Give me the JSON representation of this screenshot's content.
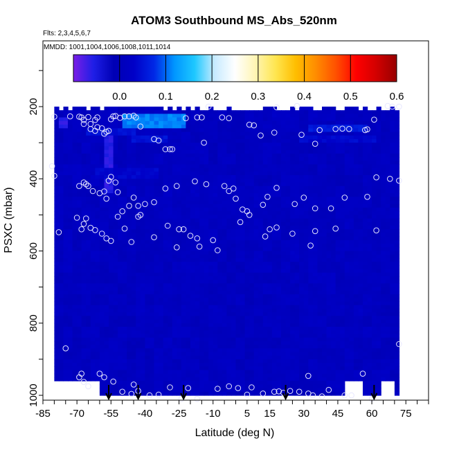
{
  "chart_data": {
    "type": "heatmap",
    "title": "ATOM3 Southbound MS_Abs_520nm",
    "flights_note": "Flts: 2,3,4,5,6,7",
    "dates_note": "MMDD: 1001,1004,1006,1008,1011,1014",
    "xlabel": "Latitude (deg N)",
    "ylabel": "PSXC (mbar)",
    "xlim": [
      -85,
      85
    ],
    "ylim": [
      1010,
      40
    ],
    "x_ticks": [
      -85,
      -70,
      -55,
      -40,
      -25,
      -10,
      5,
      15,
      30,
      45,
      60,
      75
    ],
    "y_ticks": [
      200,
      400,
      600,
      800,
      1000
    ],
    "colorbar": {
      "range": [
        -0.1,
        0.6
      ],
      "ticks": [
        0.0,
        0.1,
        0.2,
        0.3,
        0.4,
        0.5,
        0.6
      ],
      "tick_labels": [
        "0.0",
        "0.1",
        "0.2",
        "0.3",
        "0.4",
        "0.5",
        "0.6"
      ],
      "colors": [
        "#7a1ee6",
        "#1e1ee6",
        "#0000b4",
        "#0000c8",
        "#0028e6",
        "#0096ff",
        "#1ec8ff",
        "#c8ebff",
        "#ffffff",
        "#fff5b4",
        "#ffe650",
        "#ffbe00",
        "#ff8c00",
        "#ff5000",
        "#ff0000",
        "#d20000",
        "#960000"
      ]
    },
    "field_extent": {
      "lat": [
        -80,
        71
      ],
      "psxc": [
        200,
        1000
      ]
    },
    "field_gaps": [
      {
        "lat": [
          -80,
          -60
        ],
        "psxc": [
          960,
          1000
        ]
      },
      {
        "lat": [
          48,
          57
        ],
        "psxc": [
          960,
          1000
        ]
      },
      {
        "lat": [
          64,
          71
        ],
        "psxc": [
          960,
          1000
        ]
      }
    ],
    "enhancements": [
      {
        "lat": [
          -50,
          -22
        ],
        "psxc": [
          218,
          262
        ],
        "value": 0.11
      },
      {
        "lat": [
          -66,
          -45
        ],
        "psxc": [
          262,
          278
        ],
        "value": 0.05
      },
      {
        "lat": [
          -58,
          -55
        ],
        "psxc": [
          280,
          440
        ],
        "value": -0.06
      },
      {
        "lat": [
          -46,
          -30
        ],
        "psxc": [
          285,
          300
        ],
        "value": 0.05
      },
      {
        "lat": [
          33,
          57
        ],
        "psxc": [
          255,
          272
        ],
        "value": 0.06
      },
      {
        "lat": [
          28,
          62
        ],
        "psxc": [
          280,
          300
        ],
        "value": 0.04
      },
      {
        "lat": [
          -62,
          -35
        ],
        "psxc": [
          370,
          400
        ],
        "value": 0.035
      },
      {
        "lat": [
          -78,
          -74
        ],
        "psxc": [
          228,
          262
        ],
        "value": -0.06
      }
    ],
    "sample_points": [
      [
        -80,
        228
      ],
      [
        -73,
        227
      ],
      [
        -69,
        228
      ],
      [
        -68,
        230
      ],
      [
        -67,
        237
      ],
      [
        -67,
        248
      ],
      [
        -65,
        229
      ],
      [
        -64,
        248
      ],
      [
        -64,
        262
      ],
      [
        -62,
        267
      ],
      [
        -62,
        237
      ],
      [
        -61,
        230
      ],
      [
        -61,
        257
      ],
      [
        -59,
        260
      ],
      [
        -58,
        275
      ],
      [
        -57,
        270
      ],
      [
        -56,
        267
      ],
      [
        -55,
        235
      ],
      [
        -54,
        227
      ],
      [
        -53,
        226
      ],
      [
        -51,
        231
      ],
      [
        -49,
        227
      ],
      [
        -47,
        227
      ],
      [
        -45,
        225
      ],
      [
        -44,
        230
      ],
      [
        -42,
        255
      ],
      [
        -36,
        290
      ],
      [
        -34,
        294
      ],
      [
        -31,
        318
      ],
      [
        -29,
        318
      ],
      [
        -28,
        318
      ],
      [
        -22,
        232
      ],
      [
        -17,
        230
      ],
      [
        -15,
        230
      ],
      [
        -14,
        300
      ],
      [
        -6,
        230
      ],
      [
        -3,
        232
      ],
      [
        -12,
        200
      ],
      [
        6,
        250
      ],
      [
        8,
        252
      ],
      [
        11,
        280
      ],
      [
        17,
        272
      ],
      [
        18,
        202
      ],
      [
        27,
        198
      ],
      [
        29,
        278
      ],
      [
        35,
        303
      ],
      [
        37,
        265
      ],
      [
        44,
        262
      ],
      [
        47,
        261
      ],
      [
        50,
        262
      ],
      [
        57,
        265
      ],
      [
        58,
        263
      ],
      [
        61,
        236
      ],
      [
        67,
        198
      ],
      [
        69,
        200
      ],
      [
        72,
        200
      ],
      [
        -81,
        365
      ],
      [
        -80,
        392
      ],
      [
        -69,
        420
      ],
      [
        -67,
        410
      ],
      [
        -66,
        415
      ],
      [
        -65,
        420
      ],
      [
        -63,
        434
      ],
      [
        -60,
        440
      ],
      [
        -58,
        435
      ],
      [
        -57,
        455
      ],
      [
        -56,
        405
      ],
      [
        -55,
        395
      ],
      [
        -53,
        410
      ],
      [
        -52,
        437
      ],
      [
        -50,
        490
      ],
      [
        -47,
        475
      ],
      [
        -45,
        452
      ],
      [
        -43,
        475
      ],
      [
        -42,
        500
      ],
      [
        -40,
        470
      ],
      [
        -36,
        465
      ],
      [
        -31,
        427
      ],
      [
        -26,
        420
      ],
      [
        -18,
        407
      ],
      [
        -13,
        415
      ],
      [
        -5,
        420
      ],
      [
        -3,
        434
      ],
      [
        0,
        455
      ],
      [
        -1,
        427
      ],
      [
        3,
        485
      ],
      [
        5,
        490
      ],
      [
        6,
        500
      ],
      [
        12,
        472
      ],
      [
        14,
        450
      ],
      [
        18,
        425
      ],
      [
        26,
        470
      ],
      [
        30,
        452
      ],
      [
        35,
        482
      ],
      [
        42,
        482
      ],
      [
        48,
        452
      ],
      [
        58,
        450
      ],
      [
        62,
        396
      ],
      [
        68,
        400
      ],
      [
        72,
        405
      ],
      [
        -78,
        548
      ],
      [
        -70,
        508
      ],
      [
        -68,
        540
      ],
      [
        -67,
        525
      ],
      [
        -66,
        510
      ],
      [
        -64,
        536
      ],
      [
        -62,
        542
      ],
      [
        -59,
        552
      ],
      [
        -57,
        565
      ],
      [
        -55,
        572
      ],
      [
        -52,
        505
      ],
      [
        -49,
        538
      ],
      [
        -46,
        575
      ],
      [
        -43,
        505
      ],
      [
        -36,
        562
      ],
      [
        -30,
        530
      ],
      [
        -25,
        540
      ],
      [
        -23,
        540
      ],
      [
        -20,
        558
      ],
      [
        -17,
        565
      ],
      [
        -10,
        570
      ],
      [
        2,
        520
      ],
      [
        13,
        560
      ],
      [
        15,
        540
      ],
      [
        18,
        535
      ],
      [
        25,
        552
      ],
      [
        35,
        545
      ],
      [
        44,
        538
      ],
      [
        62,
        543
      ],
      [
        -16,
        588
      ],
      [
        -8,
        598
      ],
      [
        -26,
        590
      ],
      [
        33,
        585
      ],
      [
        -75,
        870
      ],
      [
        -69,
        950
      ],
      [
        -68,
        940
      ],
      [
        -67,
        963
      ],
      [
        -65,
        975
      ],
      [
        -60,
        940
      ],
      [
        -58,
        950
      ],
      [
        -54,
        962
      ],
      [
        -50,
        990
      ],
      [
        -46,
        996
      ],
      [
        -45,
        970
      ],
      [
        -43,
        988
      ],
      [
        -38,
        1000
      ],
      [
        -34,
        998
      ],
      [
        -29,
        978
      ],
      [
        -24,
        1010
      ],
      [
        -21,
        980
      ],
      [
        -17,
        1010
      ],
      [
        -8,
        982
      ],
      [
        -3,
        975
      ],
      [
        1,
        980
      ],
      [
        5,
        998
      ],
      [
        7,
        978
      ],
      [
        12,
        995
      ],
      [
        17,
        990
      ],
      [
        19,
        989
      ],
      [
        21,
        993
      ],
      [
        24,
        988
      ],
      [
        28,
        990
      ],
      [
        34,
        1000
      ],
      [
        38,
        1003
      ],
      [
        41,
        985
      ],
      [
        48,
        1000
      ],
      [
        51,
        1000
      ],
      [
        56,
        940
      ],
      [
        60,
        1010
      ],
      [
        72,
        858
      ],
      [
        32,
        946
      ],
      [
        32,
        995
      ]
    ],
    "arrows_lat": [
      -56,
      -43,
      -23,
      22,
      61
    ]
  }
}
